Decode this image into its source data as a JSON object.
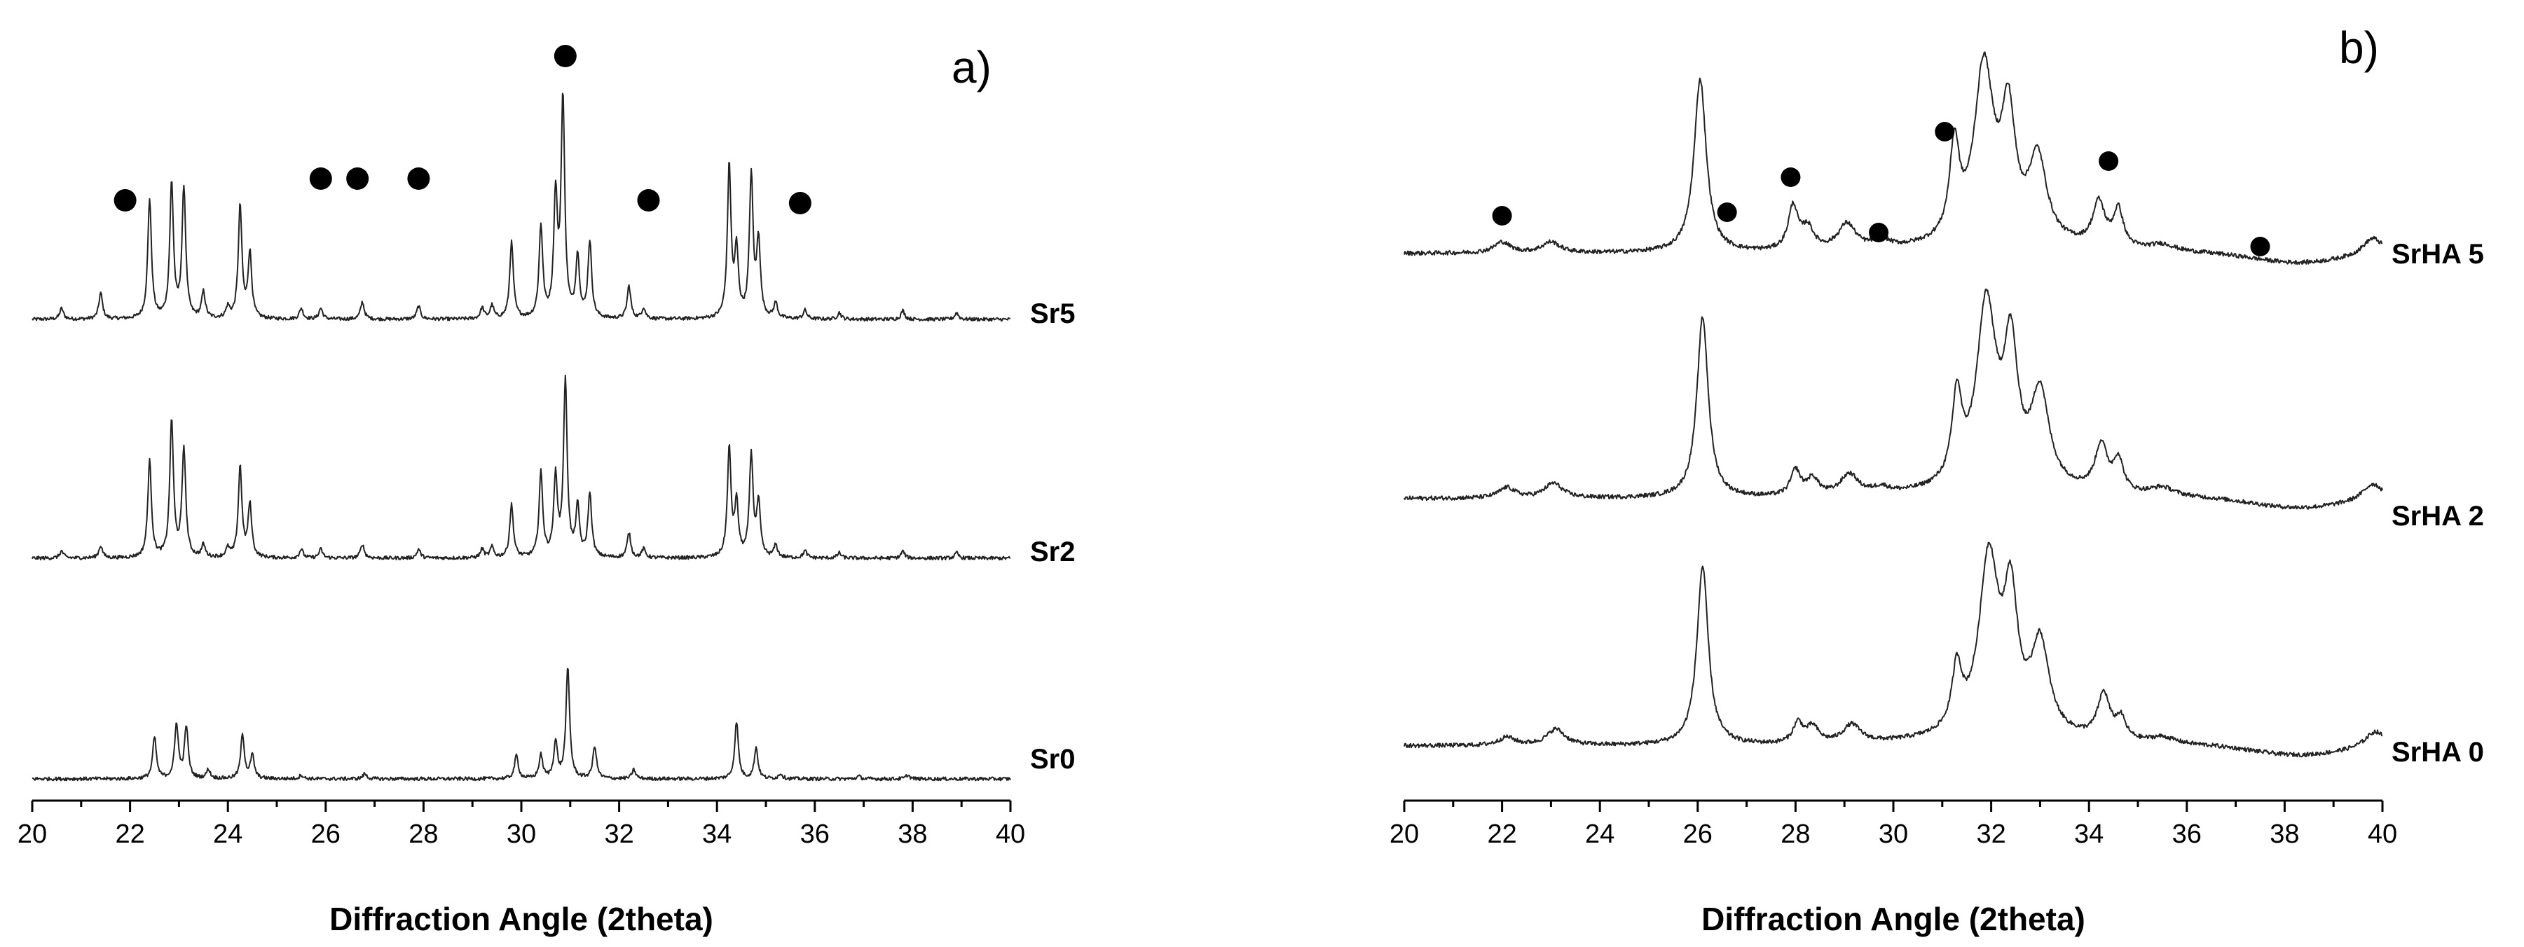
{
  "chart_data": [
    {
      "panel": "a)",
      "type": "line",
      "xlabel": "Diffraction Angle (2theta)",
      "xlim": [
        20,
        40
      ],
      "xticks": [
        20,
        22,
        24,
        26,
        28,
        30,
        32,
        34,
        36,
        38,
        40
      ],
      "grid": false,
      "series": [
        {
          "name": "Sr5",
          "peaks": [
            [
              20.6,
              0.05
            ],
            [
              21.4,
              0.12
            ],
            [
              22.4,
              0.55
            ],
            [
              22.85,
              0.62
            ],
            [
              23.1,
              0.6
            ],
            [
              23.5,
              0.12
            ],
            [
              24.0,
              0.05
            ],
            [
              24.25,
              0.52
            ],
            [
              24.45,
              0.3
            ],
            [
              25.5,
              0.05
            ],
            [
              25.9,
              0.05
            ],
            [
              26.75,
              0.08
            ],
            [
              27.9,
              0.06
            ],
            [
              29.2,
              0.05
            ],
            [
              29.4,
              0.06
            ],
            [
              29.8,
              0.35
            ],
            [
              30.4,
              0.42
            ],
            [
              30.7,
              0.55
            ],
            [
              30.85,
              1.0
            ],
            [
              31.15,
              0.28
            ],
            [
              31.4,
              0.35
            ],
            [
              32.2,
              0.15
            ],
            [
              32.5,
              0.05
            ],
            [
              34.25,
              0.7
            ],
            [
              34.4,
              0.3
            ],
            [
              34.7,
              0.65
            ],
            [
              34.85,
              0.35
            ],
            [
              35.2,
              0.07
            ],
            [
              35.8,
              0.04
            ],
            [
              36.5,
              0.03
            ],
            [
              37.8,
              0.04
            ],
            [
              38.9,
              0.03
            ]
          ]
        },
        {
          "name": "Sr2",
          "peaks": [
            [
              20.6,
              0.04
            ],
            [
              21.4,
              0.07
            ],
            [
              22.4,
              0.55
            ],
            [
              22.85,
              0.78
            ],
            [
              23.1,
              0.62
            ],
            [
              23.5,
              0.07
            ],
            [
              24.0,
              0.05
            ],
            [
              24.25,
              0.52
            ],
            [
              24.45,
              0.3
            ],
            [
              25.5,
              0.05
            ],
            [
              25.9,
              0.05
            ],
            [
              26.75,
              0.08
            ],
            [
              27.9,
              0.05
            ],
            [
              29.2,
              0.05
            ],
            [
              29.4,
              0.06
            ],
            [
              29.8,
              0.3
            ],
            [
              30.4,
              0.48
            ],
            [
              30.7,
              0.45
            ],
            [
              30.9,
              1.0
            ],
            [
              31.15,
              0.28
            ],
            [
              31.4,
              0.36
            ],
            [
              32.2,
              0.14
            ],
            [
              32.5,
              0.05
            ],
            [
              34.25,
              0.62
            ],
            [
              34.4,
              0.3
            ],
            [
              34.7,
              0.58
            ],
            [
              34.85,
              0.3
            ],
            [
              35.2,
              0.07
            ],
            [
              35.8,
              0.04
            ],
            [
              36.5,
              0.03
            ],
            [
              37.8,
              0.04
            ],
            [
              38.9,
              0.03
            ]
          ]
        },
        {
          "name": "Sr0",
          "peaks": [
            [
              22.5,
              0.32
            ],
            [
              22.95,
              0.42
            ],
            [
              23.15,
              0.4
            ],
            [
              23.6,
              0.07
            ],
            [
              24.3,
              0.34
            ],
            [
              24.5,
              0.18
            ],
            [
              25.5,
              0.03
            ],
            [
              26.8,
              0.04
            ],
            [
              29.9,
              0.18
            ],
            [
              30.4,
              0.18
            ],
            [
              30.7,
              0.28
            ],
            [
              30.95,
              0.85
            ],
            [
              31.5,
              0.25
            ],
            [
              32.3,
              0.07
            ],
            [
              34.4,
              0.44
            ],
            [
              34.8,
              0.24
            ],
            [
              35.3,
              0.04
            ],
            [
              36.9,
              0.02
            ],
            [
              37.9,
              0.03
            ]
          ]
        }
      ],
      "markers_2theta": [
        21.9,
        25.9,
        26.65,
        27.9,
        30.9,
        32.6,
        35.7
      ]
    },
    {
      "panel": "b)",
      "type": "line",
      "xlabel": "Diffraction Angle (2theta)",
      "xlim": [
        20,
        40
      ],
      "xticks": [
        20,
        22,
        24,
        26,
        28,
        30,
        32,
        34,
        36,
        38,
        40
      ],
      "grid": false,
      "series": [
        {
          "name": "SrHA 5",
          "peaks": [
            [
              22.0,
              0.05,
              0.2
            ],
            [
              23.0,
              0.05,
              0.22
            ],
            [
              26.05,
              0.8,
              0.15
            ],
            [
              27.95,
              0.2,
              0.12
            ],
            [
              28.25,
              0.1,
              0.15
            ],
            [
              29.05,
              0.12,
              0.22
            ],
            [
              29.75,
              0.04,
              0.2
            ],
            [
              31.25,
              0.42,
              0.12
            ],
            [
              31.85,
              0.8,
              0.24
            ],
            [
              32.35,
              0.55,
              0.17
            ],
            [
              32.95,
              0.38,
              0.22
            ],
            [
              34.2,
              0.2,
              0.15
            ],
            [
              34.6,
              0.17,
              0.12
            ],
            [
              35.5,
              0.03,
              0.3
            ],
            [
              39.8,
              0.08,
              0.25
            ]
          ]
        },
        {
          "name": "SrHA 2",
          "peaks": [
            [
              22.1,
              0.05,
              0.2
            ],
            [
              23.05,
              0.07,
              0.22
            ],
            [
              26.1,
              0.86,
              0.14
            ],
            [
              28.0,
              0.12,
              0.12
            ],
            [
              28.35,
              0.08,
              0.15
            ],
            [
              29.1,
              0.1,
              0.22
            ],
            [
              29.75,
              0.03,
              0.2
            ],
            [
              31.3,
              0.4,
              0.12
            ],
            [
              31.9,
              0.86,
              0.24
            ],
            [
              32.4,
              0.62,
              0.17
            ],
            [
              33.0,
              0.44,
              0.22
            ],
            [
              34.25,
              0.22,
              0.15
            ],
            [
              34.6,
              0.15,
              0.12
            ],
            [
              35.5,
              0.04,
              0.3
            ],
            [
              39.8,
              0.08,
              0.25
            ]
          ]
        },
        {
          "name": "SrHA 0",
          "peaks": [
            [
              22.1,
              0.04,
              0.2
            ],
            [
              23.1,
              0.08,
              0.22
            ],
            [
              26.1,
              0.88,
              0.14
            ],
            [
              28.05,
              0.1,
              0.12
            ],
            [
              28.35,
              0.08,
              0.15
            ],
            [
              29.15,
              0.09,
              0.22
            ],
            [
              31.3,
              0.3,
              0.12
            ],
            [
              31.95,
              0.86,
              0.24
            ],
            [
              32.4,
              0.62,
              0.17
            ],
            [
              33.0,
              0.44,
              0.22
            ],
            [
              34.3,
              0.22,
              0.15
            ],
            [
              34.65,
              0.1,
              0.12
            ],
            [
              35.5,
              0.03,
              0.3
            ],
            [
              39.85,
              0.08,
              0.25
            ]
          ]
        }
      ],
      "markers_2theta": [
        22.0,
        26.6,
        27.9,
        29.7,
        31.05,
        34.4,
        37.5
      ]
    }
  ]
}
